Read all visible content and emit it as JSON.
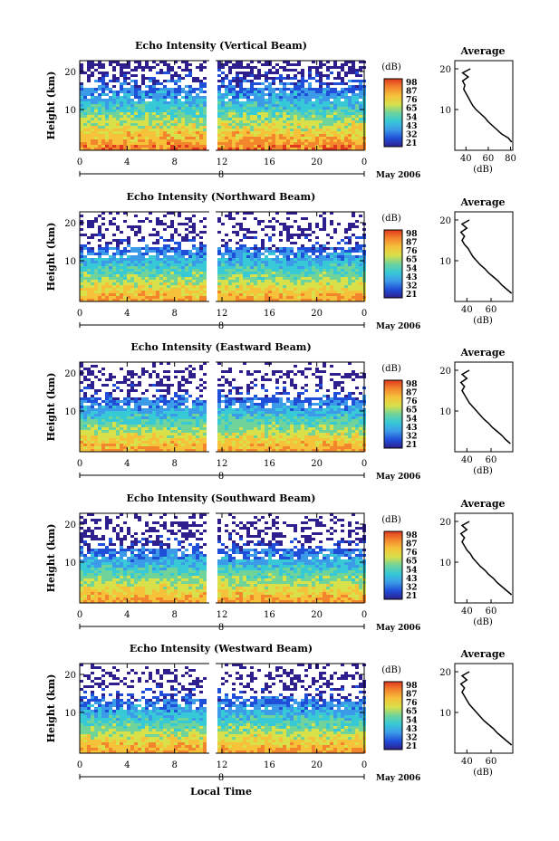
{
  "chart_data": [
    {
      "type": "heatmap",
      "title": "Echo Intensity (Vertical Beam)",
      "ylabel": "Height (km)",
      "x_ticks": [
        "0",
        "4",
        "8",
        "12",
        "16",
        "20",
        "0"
      ],
      "y_ticks": [
        "20",
        "10"
      ],
      "date_marker": "8",
      "date_label": "May 2006",
      "colorbar": {
        "unit": "(dB)",
        "ticks": [
          "98",
          "87",
          "76",
          "65",
          "54",
          "43",
          "32",
          "21"
        ]
      },
      "profile": {
        "title": "Average",
        "xlabel": "(dB)",
        "x_ticks": [
          "40",
          "60",
          "80"
        ],
        "y_ticks": [
          "20",
          "10"
        ],
        "xlim": [
          30,
          82
        ],
        "heights": [
          2,
          3,
          4,
          5,
          6,
          7,
          8,
          9,
          10,
          11,
          12,
          13,
          14,
          15,
          16,
          17,
          18,
          19,
          20
        ],
        "values": [
          81,
          78,
          72,
          68,
          64,
          60,
          57,
          53,
          49,
          46,
          44,
          42,
          40,
          38,
          39,
          37,
          42,
          37,
          44
        ]
      }
    },
    {
      "type": "heatmap",
      "title": "Echo Intensity (Northward Beam)",
      "ylabel": "Height (km)",
      "x_ticks": [
        "0",
        "4",
        "8",
        "12",
        "16",
        "20",
        "0"
      ],
      "y_ticks": [
        "20",
        "10"
      ],
      "date_marker": "8",
      "date_label": "May 2006",
      "colorbar": {
        "unit": "(dB)",
        "ticks": [
          "98",
          "87",
          "76",
          "65",
          "54",
          "43",
          "32",
          "21"
        ]
      },
      "profile": {
        "title": "Average",
        "xlabel": "(dB)",
        "x_ticks": [
          "40",
          "60"
        ],
        "y_ticks": [
          "20",
          "10"
        ],
        "xlim": [
          30,
          78
        ],
        "heights": [
          2,
          3,
          4,
          5,
          6,
          7,
          8,
          9,
          10,
          11,
          12,
          13,
          14,
          15,
          16,
          17,
          18,
          19,
          20
        ],
        "values": [
          77,
          73,
          69,
          66,
          62,
          58,
          55,
          51,
          48,
          45,
          43,
          41,
          38,
          36,
          38,
          35,
          40,
          36,
          42
        ]
      }
    },
    {
      "type": "heatmap",
      "title": "Echo Intensity (Eastward Beam)",
      "ylabel": "Height (km)",
      "x_ticks": [
        "0",
        "4",
        "8",
        "12",
        "16",
        "20",
        "0"
      ],
      "y_ticks": [
        "20",
        "10"
      ],
      "date_marker": "8",
      "date_label": "May 2006",
      "colorbar": {
        "unit": "(dB)",
        "ticks": [
          "98",
          "87",
          "76",
          "65",
          "54",
          "43",
          "32",
          "21"
        ]
      },
      "profile": {
        "title": "Average",
        "xlabel": "(dB)",
        "x_ticks": [
          "40",
          "60"
        ],
        "y_ticks": [
          "20",
          "10"
        ],
        "xlim": [
          30,
          78
        ],
        "heights": [
          2,
          3,
          4,
          5,
          6,
          7,
          8,
          9,
          10,
          11,
          12,
          13,
          14,
          15,
          16,
          17,
          18,
          19,
          20
        ],
        "values": [
          76,
          72,
          69,
          65,
          61,
          58,
          54,
          51,
          48,
          45,
          42,
          40,
          38,
          36,
          38,
          35,
          40,
          36,
          42
        ]
      }
    },
    {
      "type": "heatmap",
      "title": "Echo Intensity (Southward Beam)",
      "ylabel": "Height (km)",
      "x_ticks": [
        "0",
        "4",
        "8",
        "12",
        "16",
        "20",
        "0"
      ],
      "y_ticks": [
        "20",
        "10"
      ],
      "date_marker": "8",
      "date_label": "May 2006",
      "colorbar": {
        "unit": "(dB)",
        "ticks": [
          "98",
          "87",
          "76",
          "65",
          "54",
          "43",
          "32",
          "21"
        ]
      },
      "profile": {
        "title": "Average",
        "xlabel": "(dB)",
        "x_ticks": [
          "40",
          "60"
        ],
        "y_ticks": [
          "20",
          "10"
        ],
        "xlim": [
          30,
          78
        ],
        "heights": [
          2,
          3,
          4,
          5,
          6,
          7,
          8,
          9,
          10,
          11,
          12,
          13,
          14,
          15,
          16,
          17,
          18,
          19,
          20
        ],
        "values": [
          77,
          73,
          69,
          65,
          62,
          58,
          55,
          51,
          48,
          45,
          43,
          40,
          38,
          36,
          38,
          35,
          40,
          36,
          42
        ]
      }
    },
    {
      "type": "heatmap",
      "title": "Echo Intensity (Westward Beam)",
      "ylabel": "Height (km)",
      "x_ticks": [
        "0",
        "4",
        "8",
        "12",
        "16",
        "20",
        "0"
      ],
      "y_ticks": [
        "20",
        "10"
      ],
      "date_marker": "8",
      "date_label": "May 2006",
      "colorbar": {
        "unit": "(dB)",
        "ticks": [
          "98",
          "87",
          "76",
          "65",
          "54",
          "43",
          "32",
          "21"
        ]
      },
      "profile": {
        "title": "Average",
        "xlabel": "(dB)",
        "x_ticks": [
          "40",
          "60"
        ],
        "y_ticks": [
          "20",
          "10"
        ],
        "xlim": [
          30,
          78
        ],
        "heights": [
          2,
          3,
          4,
          5,
          6,
          7,
          8,
          9,
          10,
          11,
          12,
          13,
          14,
          15,
          16,
          17,
          18,
          19,
          20
        ],
        "values": [
          77,
          73,
          69,
          65,
          62,
          58,
          54,
          51,
          48,
          45,
          42,
          40,
          38,
          36,
          38,
          35,
          40,
          36,
          42
        ]
      }
    }
  ],
  "xlabel": "Local Time",
  "colormap": [
    "#2e1f8f",
    "#1f4fd8",
    "#3c9be8",
    "#37c9d6",
    "#6fd39a",
    "#d8e04a",
    "#f5c23a",
    "#f3862d",
    "#e03a1e"
  ]
}
